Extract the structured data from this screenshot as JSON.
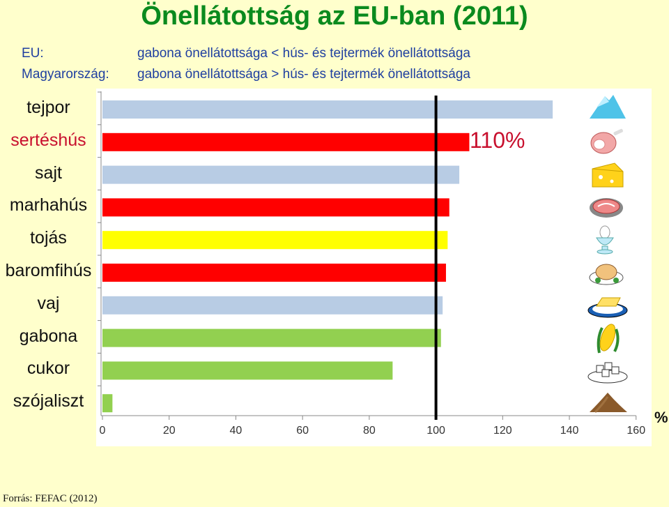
{
  "title": "Önellátottság az EU-ban (2011)",
  "subtitle": [
    {
      "label": "EU:",
      "text": "gabona önellátottsága < hús- és tejtermék önellátottsága"
    },
    {
      "label": "Magyarország:",
      "text": "gabona önellátottsága > hús- és tejtermék önellátottsága"
    }
  ],
  "annotation": "110%",
  "unit": "%",
  "source": "Forrás: FEFAC (2012)",
  "chart_data": {
    "type": "bar",
    "orientation": "horizontal",
    "categories": [
      "tejpor",
      "sertéshús",
      "sajt",
      "marhahús",
      "tojás",
      "baromfihús",
      "vaj",
      "gabona",
      "cukor",
      "szójaliszt"
    ],
    "values": [
      135,
      110,
      107,
      104,
      103.5,
      103,
      102,
      101.5,
      87,
      3
    ],
    "bar_colors": [
      "#b8cce4",
      "#ff0000",
      "#b8cce4",
      "#ff0000",
      "#ffff00",
      "#ff0000",
      "#b8cce4",
      "#92d050",
      "#92d050",
      "#92d050"
    ],
    "highlight_category": "sertéshús",
    "highlight_color": "#c8102e",
    "xlim": [
      0,
      160
    ],
    "xticks": [
      0,
      20,
      40,
      60,
      80,
      100,
      120,
      140,
      160
    ],
    "reference_line": 100,
    "grid": false,
    "icons": [
      "milk-powder-icon",
      "ham-icon",
      "cheese-icon",
      "steak-icon",
      "egg-cup-icon",
      "roast-chicken-icon",
      "butter-dish-icon",
      "corn-icon",
      "sugar-cubes-icon",
      "soy-meal-pile-icon"
    ]
  }
}
